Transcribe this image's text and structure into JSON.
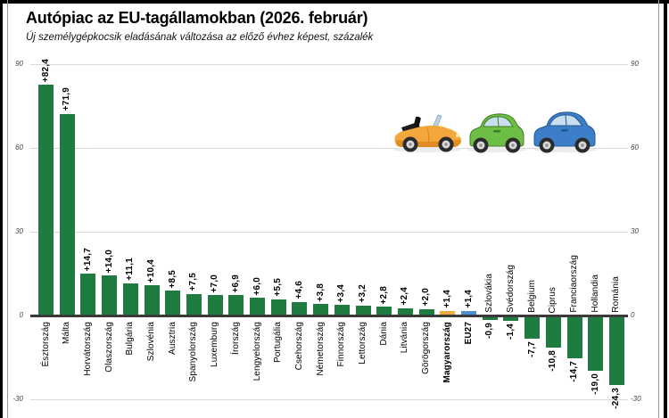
{
  "header": {
    "title": "Autópiac az EU-tagállamokban (2026. február)",
    "subtitle": "Új személygépkocsik eladásának változása az előző évhez képest, százalék"
  },
  "chart_data": {
    "type": "bar",
    "title": "Autópiac az EU-tagállamokban (2026. február)",
    "subtitle": "Új személygépkocsik eladásának változása az előző évhez képest, százalék",
    "unit": "százalék (%)",
    "categories": [
      "Észtország",
      "Málta",
      "Horvátország",
      "Olaszország",
      "Bulgária",
      "Szlovénia",
      "Ausztria",
      "Spanyolország",
      "Luxemburg",
      "Írország",
      "Lengyelország",
      "Portugália",
      "Csehország",
      "Németország",
      "Finnország",
      "Lettország",
      "Dánia",
      "Litvánia",
      "Görögország",
      "Magyarország",
      "EU27",
      "Szlovákia",
      "Svédország",
      "Belgium",
      "Ciprus",
      "Franciaország",
      "Hollandia",
      "Románia"
    ],
    "values": [
      82.4,
      71.9,
      14.7,
      14.0,
      11.1,
      10.4,
      8.5,
      7.5,
      7.0,
      6.9,
      6.0,
      5.5,
      4.6,
      3.8,
      3.4,
      3.2,
      2.8,
      2.4,
      2.0,
      1.4,
      1.4,
      -0.9,
      -1.4,
      -7.7,
      -10.8,
      -14.7,
      -19.0,
      -24.3
    ],
    "value_labels": [
      "+82,4",
      "+71,9",
      "+14,7",
      "+14,0",
      "+11,1",
      "+10,4",
      "+8,5",
      "+7,5",
      "+7,0",
      "+6,9",
      "+6,0",
      "+5,5",
      "+4,6",
      "+3,8",
      "+3,4",
      "+3,2",
      "+2,8",
      "+2,4",
      "+2,0",
      "+1,4",
      "+1,4",
      "-0,9",
      "-1,4",
      "-7,7",
      "-10,8",
      "-14,7",
      "-19,0",
      "-24,3"
    ],
    "bold_categories": [
      "Magyarország",
      "EU27"
    ],
    "bar_colors": {
      "default": "#1E7C41",
      "Magyarország": "#F2A93B",
      "EU27": "#4A8FCE"
    },
    "yticks": [
      90,
      60,
      30,
      0,
      -30
    ],
    "ylim": [
      -30,
      90
    ],
    "grid": true,
    "legend_position": "none",
    "label_rotation": "vertical-bottom-up"
  },
  "decoration": {
    "cars": [
      {
        "name": "convertible-car-icon",
        "color": "#F4A73C"
      },
      {
        "name": "hatchback-car-icon-green",
        "color": "#6CBE44"
      },
      {
        "name": "hatchback-car-icon-blue",
        "color": "#3D7EC9"
      }
    ]
  },
  "colors": {
    "grid": "#d9d9d9",
    "axis": "#3a3a3a",
    "tick_text": "#444444",
    "text": "#000000",
    "background": "#ffffff",
    "frame": "#000000"
  }
}
